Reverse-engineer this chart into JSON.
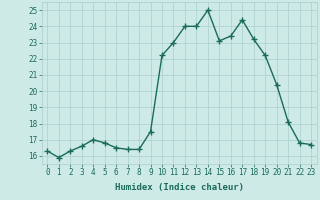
{
  "x": [
    0,
    1,
    2,
    3,
    4,
    5,
    6,
    7,
    8,
    9,
    10,
    11,
    12,
    13,
    14,
    15,
    16,
    17,
    18,
    19,
    20,
    21,
    22,
    23
  ],
  "y": [
    16.3,
    15.9,
    16.3,
    16.6,
    17.0,
    16.8,
    16.5,
    16.4,
    16.4,
    17.5,
    22.2,
    23.0,
    24.0,
    24.0,
    25.0,
    23.1,
    23.4,
    24.4,
    23.2,
    22.2,
    20.4,
    18.1,
    16.8,
    16.7
  ],
  "line_color": "#1a6b5a",
  "marker": "+",
  "marker_size": 4,
  "bg_color": "#ceeae7",
  "grid_color": "#aacfcc",
  "xlabel": "Humidex (Indice chaleur)",
  "ylim": [
    15.5,
    25.5
  ],
  "xlim": [
    -0.5,
    23.5
  ],
  "yticks": [
    16,
    17,
    18,
    19,
    20,
    21,
    22,
    23,
    24,
    25
  ],
  "xticks": [
    0,
    1,
    2,
    3,
    4,
    5,
    6,
    7,
    8,
    9,
    10,
    11,
    12,
    13,
    14,
    15,
    16,
    17,
    18,
    19,
    20,
    21,
    22,
    23
  ],
  "tick_fontsize": 5.5,
  "xlabel_fontsize": 6.5,
  "line_width": 1.0,
  "marker_color": "#1a6b5a"
}
